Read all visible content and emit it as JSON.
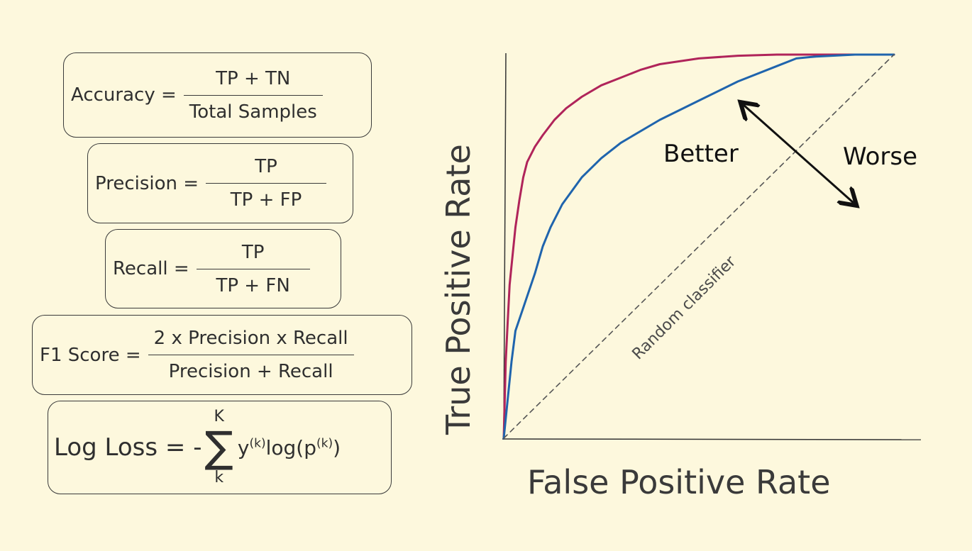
{
  "formulas": {
    "accuracy": {
      "lhs": "Accuracy =",
      "numerator": "TP + TN",
      "denominator": "Total Samples"
    },
    "precision": {
      "lhs": "Precision =",
      "numerator": "TP",
      "denominator": "TP + FP"
    },
    "recall": {
      "lhs": "Recall =",
      "numerator": "TP",
      "denominator": "TP + FN"
    },
    "f1": {
      "lhs": "F1 Score =",
      "numerator": "2 x Precision x Recall",
      "denominator": "Precision + Recall"
    },
    "logloss": {
      "lhs": "Log Loss = -",
      "upper": "K",
      "lower": "k",
      "sigma": "∑",
      "y": "y",
      "y_sup": "(k)",
      "log": "log(p",
      "p_sup": "(k)",
      "close": ")"
    }
  },
  "chart_data": {
    "type": "line",
    "xlabel": "False Positive Rate",
    "ylabel": "True Positive Rate",
    "xlim": [
      0,
      1
    ],
    "ylim": [
      0,
      1
    ],
    "grid": false,
    "series": [
      {
        "color": "#b0245a",
        "x": [
          0,
          0.005,
          0.01,
          0.015,
          0.02,
          0.03,
          0.04,
          0.05,
          0.06,
          0.08,
          0.1,
          0.13,
          0.16,
          0.2,
          0.25,
          0.3,
          0.35,
          0.4,
          0.5,
          0.6,
          0.7,
          0.8,
          0.9,
          1.0
        ],
        "y": [
          0,
          0.2,
          0.3,
          0.4,
          0.45,
          0.55,
          0.62,
          0.68,
          0.72,
          0.76,
          0.79,
          0.83,
          0.86,
          0.89,
          0.92,
          0.94,
          0.96,
          0.975,
          0.99,
          0.997,
          1.0,
          1.0,
          1.0,
          1.0
        ]
      },
      {
        "color": "#1f64ad",
        "x": [
          0,
          0.01,
          0.02,
          0.03,
          0.04,
          0.05,
          0.06,
          0.08,
          0.1,
          0.12,
          0.15,
          0.2,
          0.25,
          0.3,
          0.4,
          0.5,
          0.6,
          0.7,
          0.75,
          0.8,
          0.9,
          1.0
        ],
        "y": [
          0,
          0.1,
          0.2,
          0.28,
          0.31,
          0.34,
          0.37,
          0.43,
          0.5,
          0.55,
          0.61,
          0.68,
          0.73,
          0.77,
          0.83,
          0.88,
          0.93,
          0.97,
          0.99,
          0.995,
          1.0,
          1.0
        ]
      },
      {
        "color": "#555555",
        "style": "dashed",
        "x": [
          0,
          1
        ],
        "y": [
          0,
          1
        ]
      }
    ],
    "annotations": {
      "random": "Random classifier",
      "better": "Better",
      "worse": "Worse"
    }
  }
}
